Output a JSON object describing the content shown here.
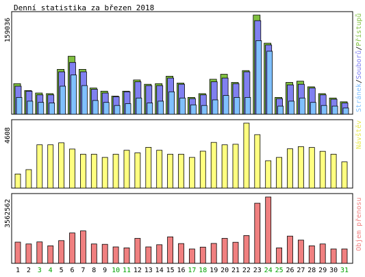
{
  "title": "Denní statistika za březen 2018",
  "colors": {
    "background": "#ffffff",
    "frame": "#000000",
    "hits": "#80c040",
    "files": "#8080f0",
    "pages": "#80c0ff",
    "visits": "#ffff80",
    "volume": "#f08080",
    "weekend_label": "#00a000",
    "weekday_label": "#000000",
    "legend_separator": "#000000"
  },
  "chart_data": [
    {
      "type": "bar",
      "panel": "hits",
      "ymax_label": "159036",
      "legend": [
        {
          "key": "pages",
          "label": "Stránek"
        },
        {
          "key": "files",
          "label": "Souborů"
        },
        {
          "key": "hits",
          "label": "Přístupů"
        }
      ],
      "ymax": 159036,
      "categories": [
        "1",
        "2",
        "3",
        "4",
        "5",
        "6",
        "7",
        "8",
        "9",
        "10",
        "11",
        "12",
        "13",
        "14",
        "15",
        "16",
        "17",
        "18",
        "19",
        "20",
        "21",
        "22",
        "23",
        "24",
        "25",
        "26",
        "27",
        "28",
        "29",
        "30",
        "31"
      ],
      "series": [
        {
          "key": "hits",
          "name": "Přístupů",
          "values": [
            49000,
            38000,
            34000,
            33000,
            72000,
            93000,
            72000,
            42000,
            37000,
            29000,
            37000,
            55000,
            48000,
            49000,
            61000,
            50000,
            27000,
            33000,
            56000,
            64000,
            51000,
            70000,
            159036,
            114000,
            27000,
            51000,
            53000,
            44000,
            33000,
            26000,
            20000
          ]
        },
        {
          "key": "files",
          "name": "Souborů",
          "values": [
            45000,
            37000,
            31000,
            31000,
            68000,
            83000,
            68000,
            40000,
            34000,
            28000,
            36000,
            52000,
            46000,
            46000,
            58000,
            48000,
            25000,
            31000,
            52000,
            58000,
            49000,
            68000,
            150000,
            111000,
            25000,
            47000,
            48000,
            42000,
            31000,
            24000,
            18000
          ]
        },
        {
          "key": "pages",
          "name": "Stránek",
          "values": [
            27000,
            21000,
            19000,
            18000,
            45000,
            63000,
            46000,
            22000,
            19000,
            14000,
            17000,
            26000,
            18000,
            21000,
            36000,
            26000,
            15000,
            14000,
            23000,
            30000,
            27000,
            27000,
            118000,
            101000,
            13000,
            21000,
            26000,
            19000,
            14000,
            13000,
            10000
          ]
        }
      ],
      "days_green": [
        "3",
        "4",
        "10",
        "11",
        "17",
        "18",
        "24",
        "25",
        "31"
      ]
    },
    {
      "type": "bar",
      "panel": "visits",
      "ymax_label": "4608",
      "legend": [
        {
          "key": "visits",
          "label": "Návštěv"
        }
      ],
      "ymax": 4608,
      "categories": [
        "1",
        "2",
        "3",
        "4",
        "5",
        "6",
        "7",
        "8",
        "9",
        "10",
        "11",
        "12",
        "13",
        "14",
        "15",
        "16",
        "17",
        "18",
        "19",
        "20",
        "21",
        "22",
        "23",
        "24",
        "25",
        "26",
        "27",
        "28",
        "29",
        "30",
        "31"
      ],
      "series": [
        {
          "key": "visits",
          "name": "Návštěv",
          "values": [
            1000,
            1310,
            3070,
            3070,
            3210,
            2770,
            2400,
            2400,
            2180,
            2400,
            2680,
            2500,
            2890,
            2680,
            2400,
            2400,
            2180,
            2620,
            3240,
            3070,
            3110,
            4608,
            3790,
            1940,
            2180,
            2790,
            2940,
            2880,
            2610,
            2400,
            1860
          ]
        }
      ]
    },
    {
      "type": "bar",
      "panel": "volume",
      "ymax_label": "3562562",
      "legend": [
        {
          "key": "volume",
          "label": "Objem přenosu"
        }
      ],
      "ymax": 3562562,
      "categories": [
        "1",
        "2",
        "3",
        "4",
        "5",
        "6",
        "7",
        "8",
        "9",
        "10",
        "11",
        "12",
        "13",
        "14",
        "15",
        "16",
        "17",
        "18",
        "19",
        "20",
        "21",
        "22",
        "23",
        "24",
        "25",
        "26",
        "27",
        "28",
        "29",
        "30",
        "31"
      ],
      "series": [
        {
          "key": "volume",
          "name": "Objem přenosu",
          "values": [
            1140000,
            1040000,
            1150000,
            940000,
            1220000,
            1630000,
            1740000,
            1040000,
            1020000,
            880000,
            830000,
            1340000,
            880000,
            1000000,
            1420000,
            1060000,
            770000,
            870000,
            1070000,
            1340000,
            1130000,
            1490000,
            3230000,
            3562562,
            830000,
            1460000,
            1250000,
            940000,
            1040000,
            770000,
            770000
          ]
        }
      ]
    }
  ]
}
